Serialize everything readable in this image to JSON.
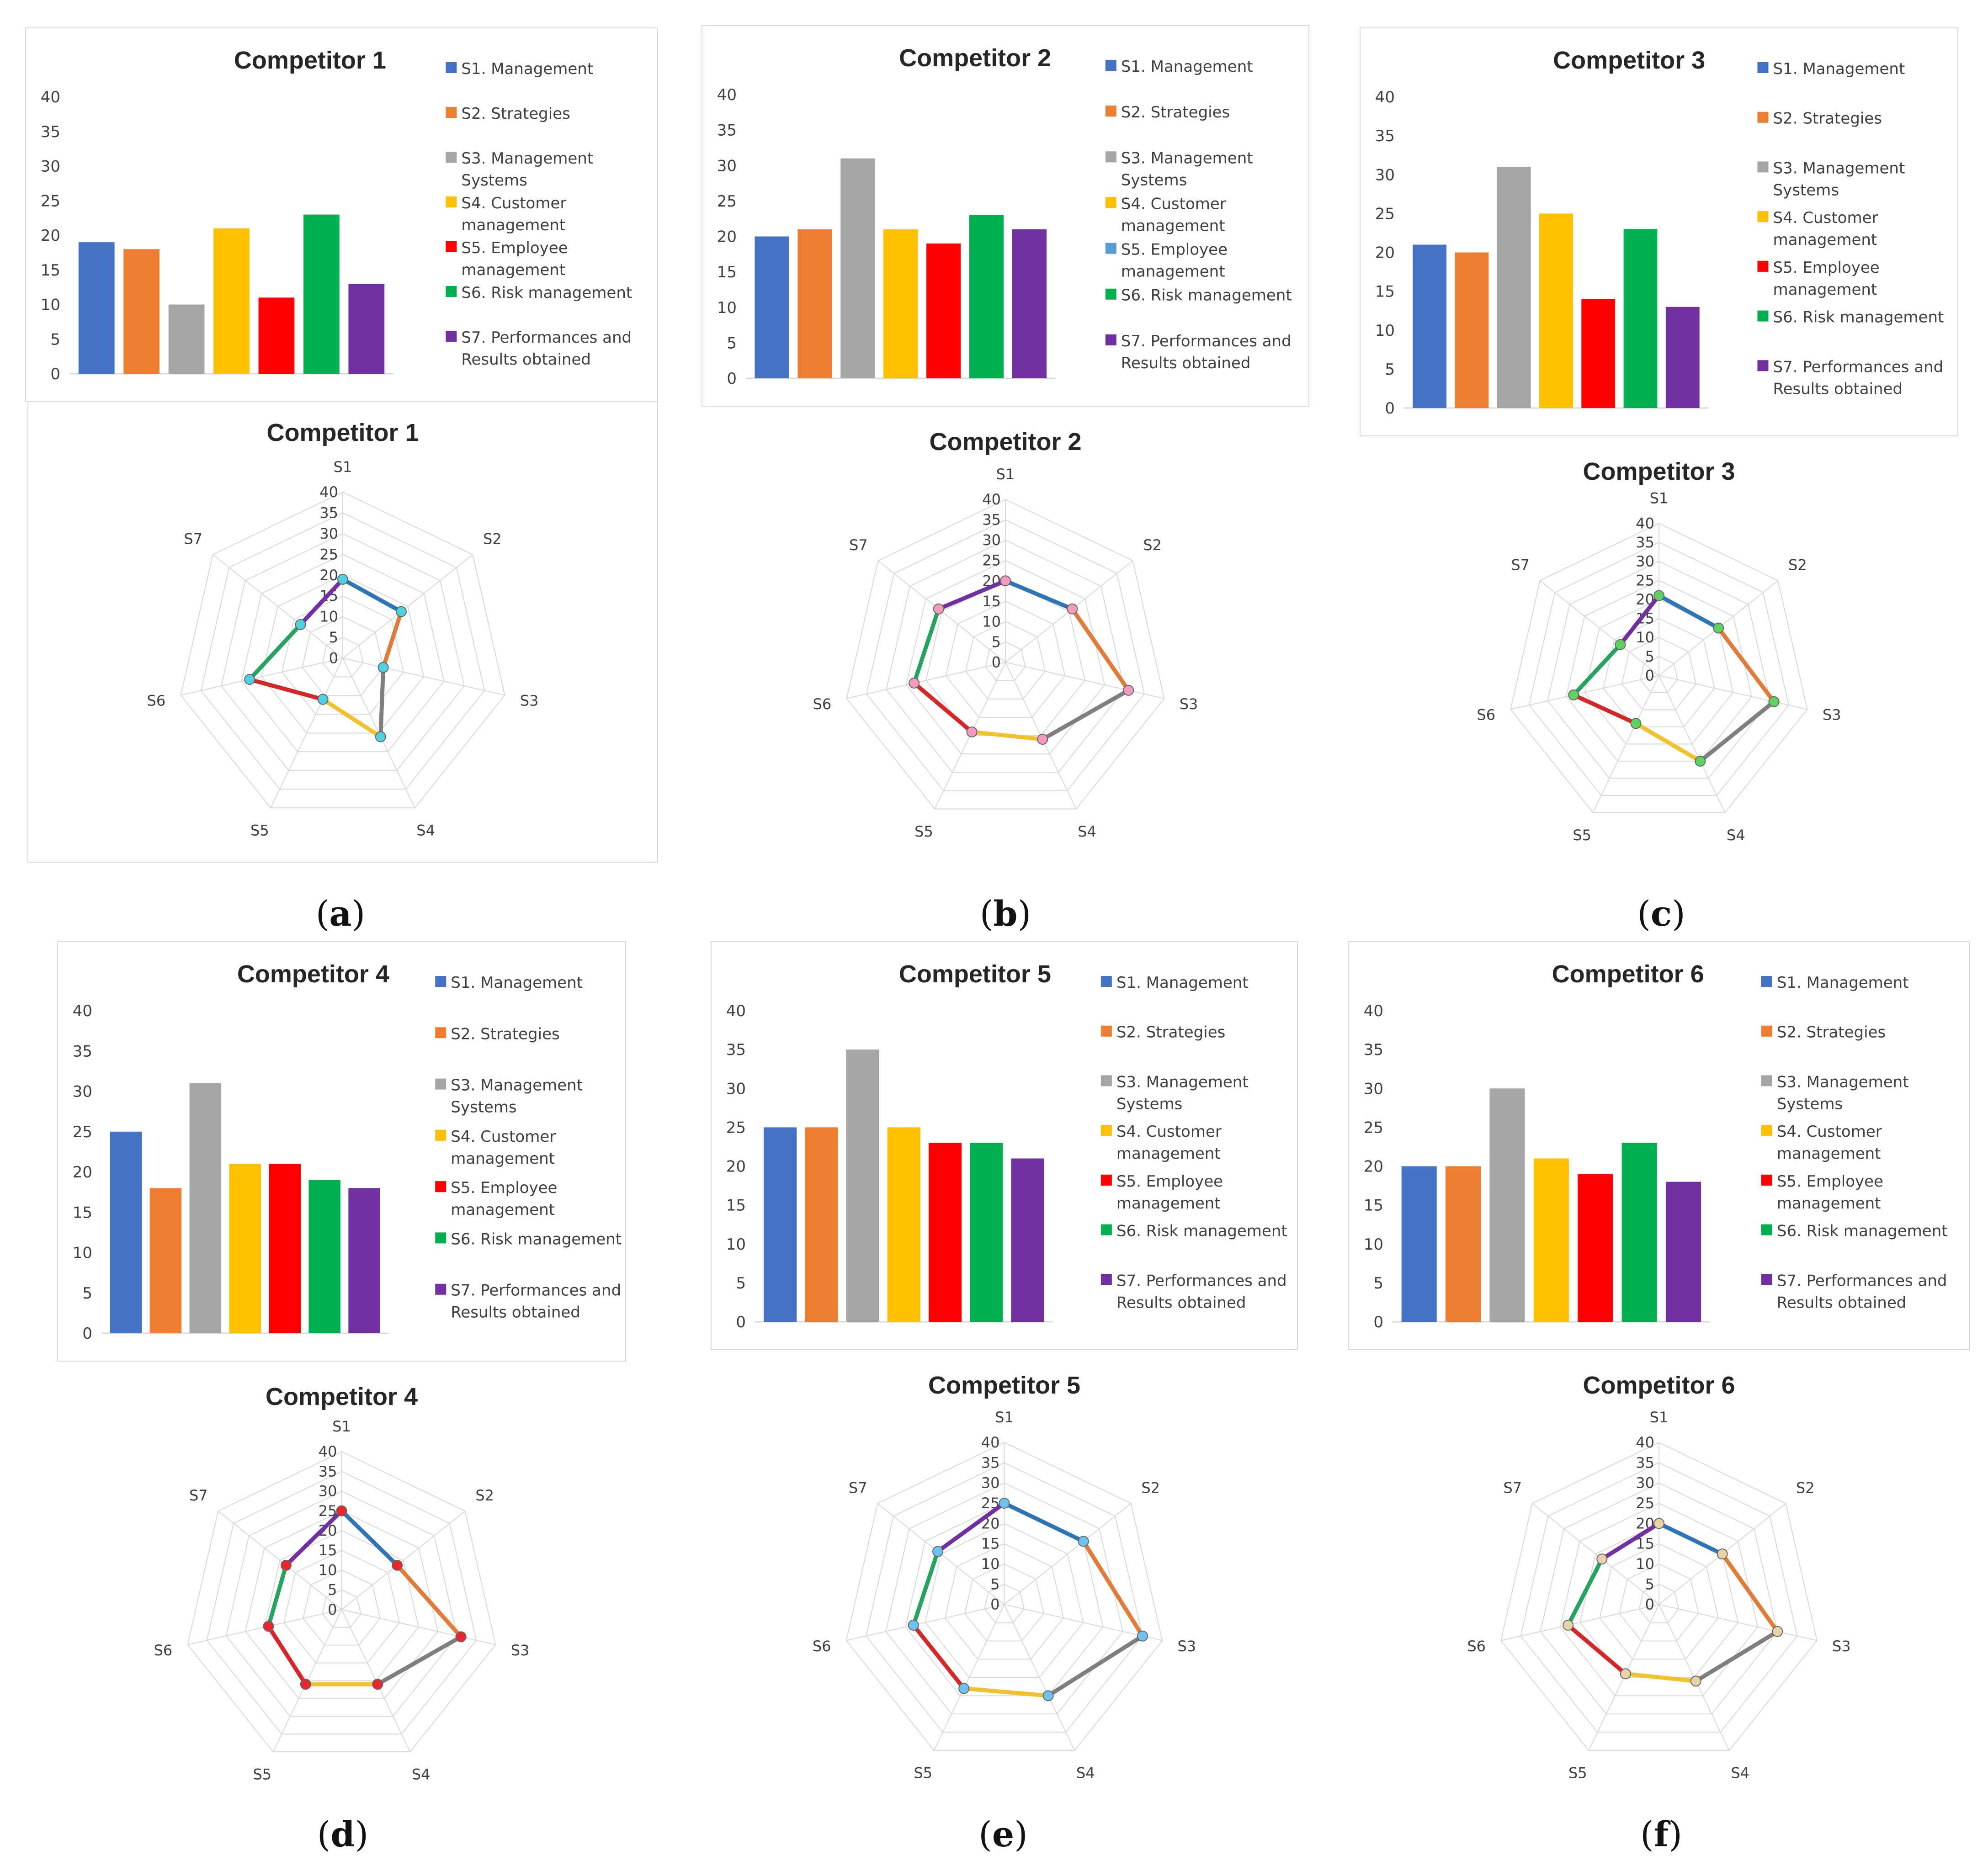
{
  "colors": {
    "S1": "#4472c4",
    "S2": "#ed7d31",
    "S3": "#a5a5a5",
    "S4": "#ffc000",
    "S5": "#ff0000",
    "S6": "#00b050",
    "S7": "#7030a0",
    "radar_S1": "#2e75b6",
    "radar_S2": "#e07b39",
    "radar_S3": "#7f7f7f",
    "radar_S4": "#f2c12e",
    "radar_S5": "#d62728",
    "radar_S6": "#27a360",
    "radar_S7": "#7030a0",
    "grid": "#d9d9d9"
  },
  "legend_labels": [
    [
      "S1. Management"
    ],
    [
      "S2. Strategies"
    ],
    [
      "S3. Management",
      "Systems"
    ],
    [
      "S4. Customer",
      "management"
    ],
    [
      "S5. Employee",
      "management"
    ],
    [
      "S6. Risk management"
    ],
    [
      "S7. Performances and",
      "Results obtained"
    ]
  ],
  "legend_labels_c2": [
    [
      "S1. Management"
    ],
    [
      "S2. Strategies"
    ],
    [
      "S3. Management",
      "Systems"
    ],
    [
      "S4. Customer",
      "management"
    ],
    [
      "S5. Employee",
      "management"
    ],
    [
      "S6. Risk management"
    ],
    [
      "S7. Performances and",
      "Results obtained"
    ]
  ],
  "radar_axis_labels": [
    "S1",
    "S2",
    "S3",
    "S4",
    "S5",
    "S6",
    "S7"
  ],
  "panel_letters": [
    "a",
    "b",
    "c",
    "d",
    "e",
    "f"
  ],
  "chart_data": [
    {
      "type": "bar",
      "title": "Competitor 1",
      "categories": [
        "S1",
        "S2",
        "S3",
        "S4",
        "S5",
        "S6",
        "S7"
      ],
      "values": [
        19,
        18,
        10,
        21,
        11,
        23,
        13
      ],
      "ylim": [
        0,
        40
      ],
      "yticks": [
        0,
        5,
        10,
        15,
        20,
        25,
        30,
        35,
        40
      ],
      "legend": "right"
    },
    {
      "type": "radar",
      "title": "Competitor 1",
      "axes": [
        "S1",
        "S2",
        "S3",
        "S4",
        "S5",
        "S6",
        "S7"
      ],
      "values": [
        19,
        18,
        10,
        21,
        11,
        23,
        13
      ],
      "rlim": [
        0,
        40
      ],
      "rticks": [
        0,
        5,
        10,
        15,
        20,
        25,
        30,
        35,
        40
      ],
      "marker_color": "#4fd1e0"
    },
    {
      "type": "bar",
      "title": "Competitor 2",
      "categories": [
        "S1",
        "S2",
        "S3",
        "S4",
        "S5",
        "S6",
        "S7"
      ],
      "values": [
        20,
        21,
        31,
        21,
        19,
        23,
        21
      ],
      "ylim": [
        0,
        40
      ],
      "yticks": [
        0,
        5,
        10,
        15,
        20,
        25,
        30,
        35,
        40
      ],
      "legend": "right"
    },
    {
      "type": "radar",
      "title": "Competitor 2",
      "axes": [
        "S1",
        "S2",
        "S3",
        "S4",
        "S5",
        "S6",
        "S7"
      ],
      "values": [
        20,
        21,
        31,
        21,
        19,
        23,
        21
      ],
      "rlim": [
        0,
        40
      ],
      "rticks": [
        0,
        5,
        10,
        15,
        20,
        25,
        30,
        35,
        40
      ],
      "marker_color": "#f29ac0"
    },
    {
      "type": "bar",
      "title": "Competitor 3",
      "categories": [
        "S1",
        "S2",
        "S3",
        "S4",
        "S5",
        "S6",
        "S7"
      ],
      "values": [
        21,
        20,
        31,
        25,
        14,
        23,
        13
      ],
      "ylim": [
        0,
        40
      ],
      "yticks": [
        0,
        5,
        10,
        15,
        20,
        25,
        30,
        35,
        40
      ],
      "legend": "right"
    },
    {
      "type": "radar",
      "title": "Competitor 3",
      "axes": [
        "S1",
        "S2",
        "S3",
        "S4",
        "S5",
        "S6",
        "S7"
      ],
      "values": [
        21,
        20,
        31,
        25,
        14,
        23,
        13
      ],
      "rlim": [
        0,
        40
      ],
      "rticks": [
        0,
        5,
        10,
        15,
        20,
        25,
        30,
        35,
        40
      ],
      "marker_color": "#5ed15e"
    },
    {
      "type": "bar",
      "title": "Competitor 4",
      "categories": [
        "S1",
        "S2",
        "S3",
        "S4",
        "S5",
        "S6",
        "S7"
      ],
      "values": [
        25,
        18,
        31,
        21,
        21,
        19,
        18
      ],
      "ylim": [
        0,
        40
      ],
      "yticks": [
        0,
        5,
        10,
        15,
        20,
        25,
        30,
        35,
        40
      ],
      "legend": "right"
    },
    {
      "type": "radar",
      "title": "Competitor 4",
      "axes": [
        "S1",
        "S2",
        "S3",
        "S4",
        "S5",
        "S6",
        "S7"
      ],
      "values": [
        25,
        18,
        31,
        21,
        21,
        19,
        18
      ],
      "rlim": [
        0,
        40
      ],
      "rticks": [
        0,
        5,
        10,
        15,
        20,
        25,
        30,
        35,
        40
      ],
      "marker_color": "#e8262b"
    },
    {
      "type": "bar",
      "title": "Competitor 5",
      "categories": [
        "S1",
        "S2",
        "S3",
        "S4",
        "S5",
        "S6",
        "S7"
      ],
      "values": [
        25,
        25,
        35,
        25,
        23,
        23,
        21
      ],
      "ylim": [
        0,
        40
      ],
      "yticks": [
        0,
        5,
        10,
        15,
        20,
        25,
        30,
        35,
        40
      ],
      "legend": "right"
    },
    {
      "type": "radar",
      "title": "Competitor 5",
      "axes": [
        "S1",
        "S2",
        "S3",
        "S4",
        "S5",
        "S6",
        "S7"
      ],
      "values": [
        25,
        25,
        35,
        25,
        23,
        23,
        21
      ],
      "rlim": [
        0,
        40
      ],
      "rticks": [
        0,
        5,
        10,
        15,
        20,
        25,
        30,
        35,
        40
      ],
      "marker_color": "#6cc3f0"
    },
    {
      "type": "bar",
      "title": "Competitor 6",
      "categories": [
        "S1",
        "S2",
        "S3",
        "S4",
        "S5",
        "S6",
        "S7"
      ],
      "values": [
        20,
        20,
        30,
        21,
        19,
        23,
        18
      ],
      "ylim": [
        0,
        40
      ],
      "yticks": [
        0,
        5,
        10,
        15,
        20,
        25,
        30,
        35,
        40
      ],
      "legend": "right"
    },
    {
      "type": "radar",
      "title": "Competitor 6",
      "axes": [
        "S1",
        "S2",
        "S3",
        "S4",
        "S5",
        "S6",
        "S7"
      ],
      "values": [
        20,
        20,
        30,
        21,
        19,
        23,
        18
      ],
      "rlim": [
        0,
        40
      ],
      "rticks": [
        0,
        5,
        10,
        15,
        20,
        25,
        30,
        35,
        40
      ],
      "marker_color": "#e8d3a8"
    }
  ]
}
